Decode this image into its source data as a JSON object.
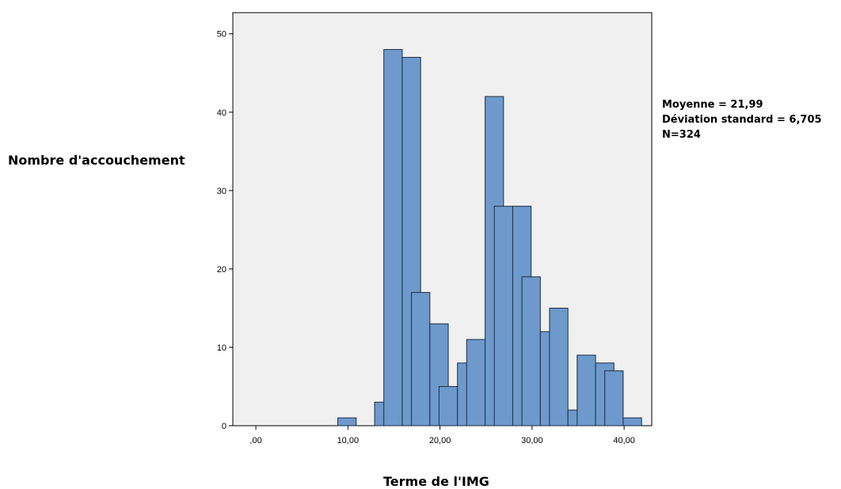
{
  "chart_data": {
    "type": "bar",
    "subtype": "histogram",
    "xlabel": "Terme de l'IMG",
    "ylabel": "Nombre d'accouchement",
    "bin_width": 2,
    "bins": [
      {
        "start": 8.9,
        "count": 1
      },
      {
        "start": 12.9,
        "count": 3
      },
      {
        "start": 13.9,
        "count": 48
      },
      {
        "start": 15.9,
        "count": 47
      },
      {
        "start": 16.9,
        "count": 17
      },
      {
        "start": 18.9,
        "count": 13
      },
      {
        "start": 19.9,
        "count": 5
      },
      {
        "start": 21.9,
        "count": 8
      },
      {
        "start": 22.9,
        "count": 11
      },
      {
        "start": 24.9,
        "count": 42
      },
      {
        "start": 25.9,
        "count": 28
      },
      {
        "start": 27.9,
        "count": 28
      },
      {
        "start": 28.9,
        "count": 19
      },
      {
        "start": 30.9,
        "count": 12
      },
      {
        "start": 31.9,
        "count": 15
      },
      {
        "start": 33.9,
        "count": 2
      },
      {
        "start": 34.9,
        "count": 9
      },
      {
        "start": 36.9,
        "count": 8
      },
      {
        "start": 37.9,
        "count": 7
      },
      {
        "start": 39.9,
        "count": 1
      }
    ],
    "xlim": [
      -2.5,
      43
    ],
    "ylim": [
      0,
      52.7
    ],
    "x_ticks": [
      0,
      10,
      20,
      30,
      40
    ],
    "x_tick_labels": [
      ",00",
      "10,00",
      "20,00",
      "30,00",
      "40,00"
    ],
    "y_ticks": [
      0,
      10,
      20,
      30,
      40,
      50
    ],
    "y_tick_labels": [
      "0",
      "10",
      "20",
      "30",
      "40",
      "50"
    ],
    "grid": false,
    "plot_background": "#f0f0f0",
    "bar_color": "#6d99cc",
    "bar_edge_color": "#1f2d40",
    "stats": {
      "mean": "Moyenne = 21,99",
      "std": "Déviation standard = 6,705",
      "n": "N=324"
    }
  }
}
